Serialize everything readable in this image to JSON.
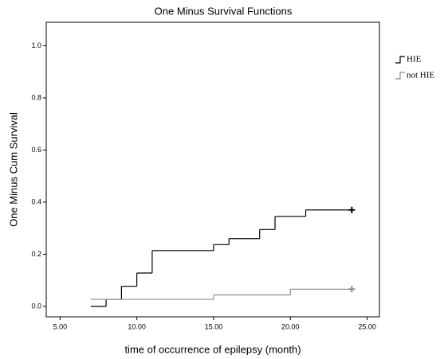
{
  "chart_data": {
    "type": "step",
    "title": "One Minus Survival Functions",
    "x_label": "time of occurrence of epilepsy (month)",
    "y_label": "One Minus Cum Survival",
    "xlim": [
      4.1,
      25.8
    ],
    "ylim": [
      -0.04,
      1.09
    ],
    "xticks": [
      {
        "value": 5,
        "label": "5.00"
      },
      {
        "value": 10,
        "label": "10.00"
      },
      {
        "value": 15,
        "label": "15.00"
      },
      {
        "value": 20,
        "label": "20.00"
      },
      {
        "value": 25,
        "label": "25.00"
      }
    ],
    "yticks": [
      {
        "value": 0,
        "label": "0.0"
      },
      0.2,
      0.4,
      0.6,
      0.8,
      {
        "value": 1,
        "label": "1.0"
      }
    ],
    "legend": "right",
    "series": [
      {
        "name": "HIE",
        "color": "#000000",
        "x": [
          7,
          8,
          9,
          10,
          11,
          15,
          16,
          18,
          19,
          21,
          24
        ],
        "values": [
          0,
          0.027,
          0.077,
          0.128,
          0.214,
          0.237,
          0.26,
          0.295,
          0.345,
          0.37,
          0.37
        ]
      },
      {
        "name": "not HIE",
        "color": "#8c8c8c",
        "x": [
          7,
          15,
          20,
          24
        ],
        "values": [
          0.027,
          0.044,
          0.066,
          0.066
        ]
      }
    ]
  }
}
